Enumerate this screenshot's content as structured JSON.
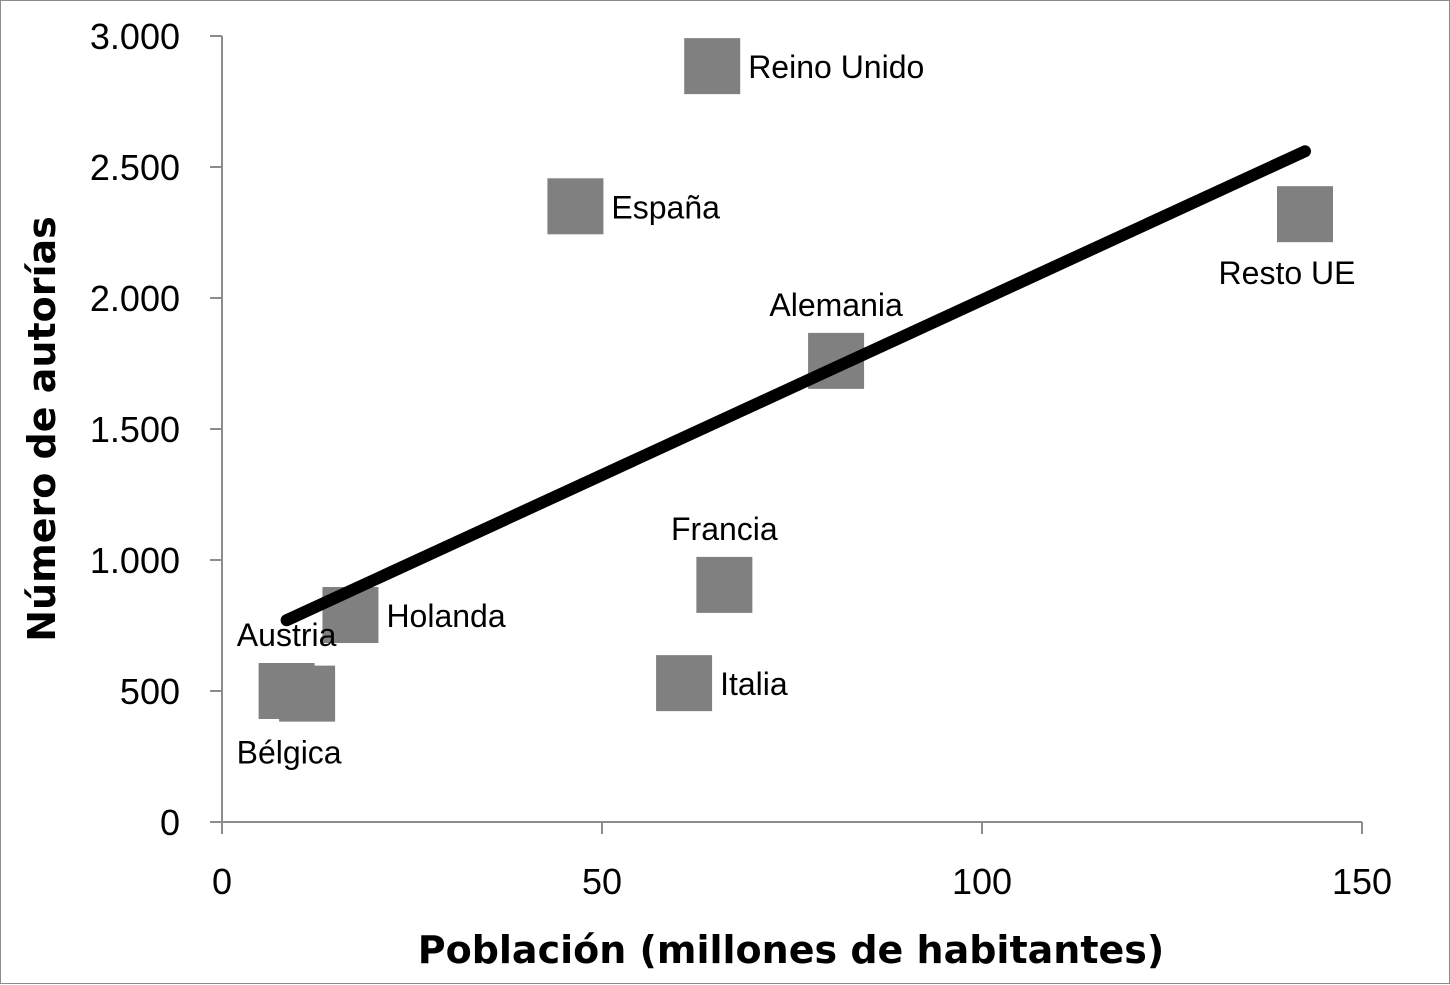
{
  "chart_data": {
    "type": "scatter",
    "xlabel": "Población (millones de habitantes)",
    "ylabel": "Número de autorías",
    "xlim": [
      0,
      150
    ],
    "ylim": [
      0,
      3000
    ],
    "x_ticks": [
      0,
      50,
      100,
      150
    ],
    "x_tick_labels": [
      "0",
      "50",
      "100",
      "150"
    ],
    "y_ticks": [
      0,
      500,
      1000,
      1500,
      2000,
      2500,
      3000
    ],
    "y_tick_labels": [
      "0",
      "500",
      "1.000",
      "1.500",
      "2.000",
      "2.500",
      "3.000"
    ],
    "grid": false,
    "legend": "none",
    "marker_color": "#808080",
    "trendline_color": "#000000",
    "points": [
      {
        "label": "Reino Unido",
        "x": 64.5,
        "y": 2885,
        "label_pos": "right"
      },
      {
        "label": "España",
        "x": 46.5,
        "y": 2350,
        "label_pos": "right"
      },
      {
        "label": "Resto UE",
        "x": 142.5,
        "y": 2320,
        "label_pos": "below"
      },
      {
        "label": "Alemania",
        "x": 80.8,
        "y": 1760,
        "label_pos": "above"
      },
      {
        "label": "Francia",
        "x": 66.1,
        "y": 905,
        "label_pos": "above"
      },
      {
        "label": "Holanda",
        "x": 16.9,
        "y": 790,
        "label_pos": "right"
      },
      {
        "label": "Italia",
        "x": 60.8,
        "y": 530,
        "label_pos": "right"
      },
      {
        "label": "Austria",
        "x": 8.5,
        "y": 500,
        "label_pos": "above"
      },
      {
        "label": "Bélgica",
        "x": 11.2,
        "y": 490,
        "label_pos": "below"
      }
    ],
    "trendline": {
      "x": [
        8.5,
        142.5
      ],
      "y": [
        770,
        2560
      ]
    }
  }
}
